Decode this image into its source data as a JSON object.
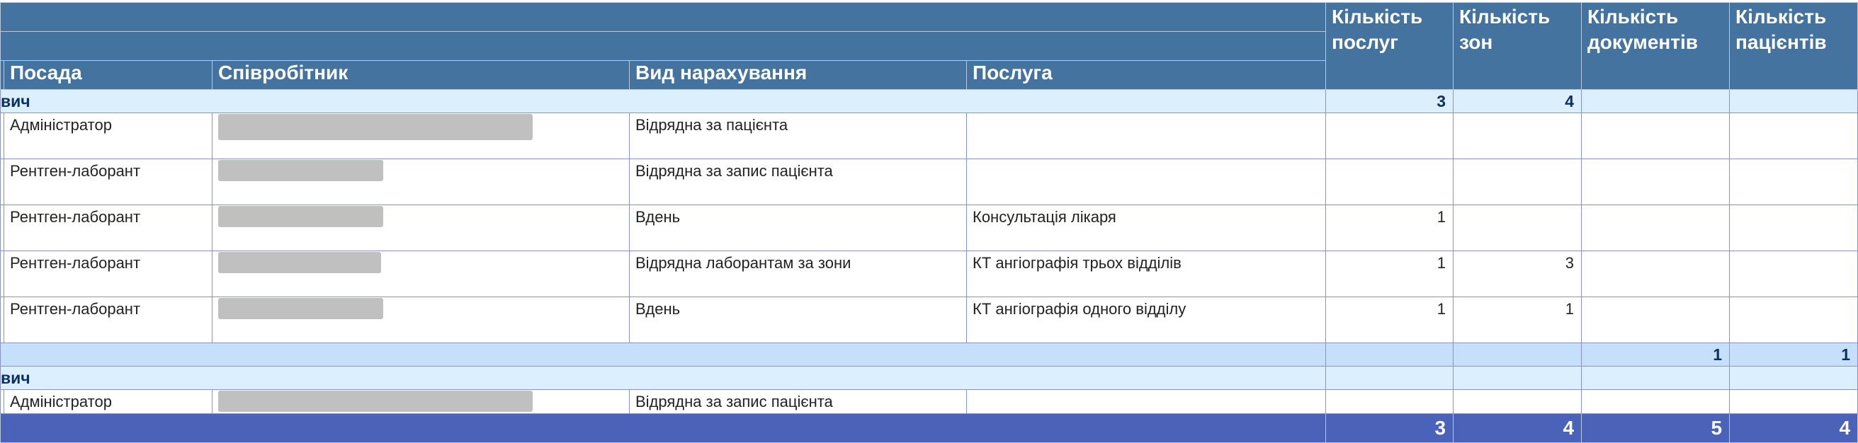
{
  "header": {
    "columns": [
      "Посада",
      "Співробітник",
      "Вид нарахування",
      "Послуга"
    ],
    "count_columns": [
      "Кількість послуг",
      "Кількість зон",
      "Кількість документів",
      "Кількість пацієнтів"
    ]
  },
  "colors": {
    "header_bg": "#44739f",
    "group_bg": "#dbeffd",
    "subtotal_bg": "#c6e0fb",
    "total_bg": "#4a62b8",
    "border": "#8a93c8"
  },
  "groups": [
    {
      "name": "вич",
      "totals": [
        "3",
        "4",
        "",
        ""
      ],
      "rows": [
        {
          "position": "Адміністратор",
          "employee": "[redacted]",
          "accrual": "Відрядна за пацієнта",
          "service": "",
          "counts": [
            "",
            "",
            "",
            ""
          ]
        },
        {
          "position": "Рентген-лаборант",
          "employee": "[redacted]",
          "accrual": "Відрядна за запис пацієнта",
          "service": "",
          "counts": [
            "",
            "",
            "",
            ""
          ]
        },
        {
          "position": "Рентген-лаборант",
          "employee": "[redacted]",
          "accrual": "Вдень",
          "service": "Консультація лікаря",
          "counts": [
            "1",
            "",
            "",
            ""
          ]
        },
        {
          "position": "Рентген-лаборант",
          "employee": "[redacted]",
          "accrual": "Відрядна лаборантам за зони",
          "service": "КТ ангіографія трьох відділів",
          "counts": [
            "1",
            "3",
            "",
            ""
          ]
        },
        {
          "position": "Рентген-лаборант",
          "employee": "[redacted]",
          "accrual": "Вдень",
          "service": "КТ ангіографія одного відділу",
          "counts": [
            "1",
            "1",
            "",
            ""
          ]
        }
      ],
      "subtotal": [
        "",
        "",
        "1",
        "1"
      ]
    },
    {
      "name": "вич",
      "totals": [
        "",
        "",
        "",
        ""
      ],
      "rows": [
        {
          "position": "Адміністратор",
          "employee": "[redacted]",
          "accrual": "Відрядна за запис пацієнта",
          "service": "",
          "counts": [
            "",
            "",
            "",
            ""
          ]
        }
      ]
    }
  ],
  "grand_total": [
    "3",
    "4",
    "5",
    "4"
  ]
}
